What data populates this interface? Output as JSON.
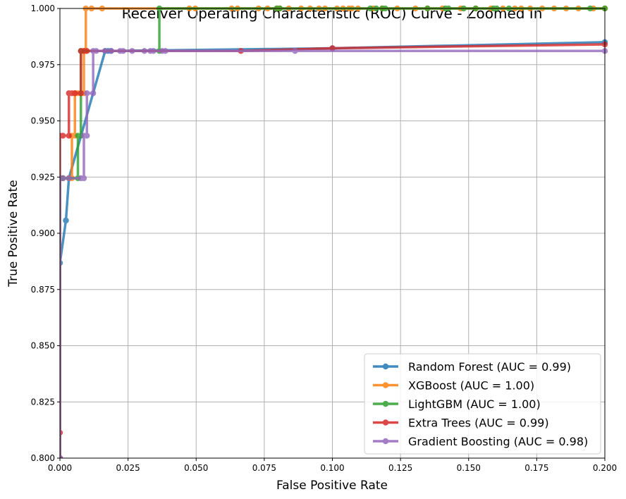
{
  "chart_data": {
    "type": "line",
    "title": "Receiver Operating Characteristic (ROC) Curve - Zoomed In",
    "xlabel": "False Positive Rate",
    "ylabel": "True Positive Rate",
    "xlim": [
      0.0,
      0.2
    ],
    "ylim": [
      0.8,
      1.0
    ],
    "xticks": [
      "0.000",
      "0.025",
      "0.050",
      "0.075",
      "0.100",
      "0.125",
      "0.150",
      "0.175",
      "0.200"
    ],
    "yticks": [
      "0.800",
      "0.825",
      "0.850",
      "0.875",
      "0.900",
      "0.925",
      "0.950",
      "0.975",
      "1.000"
    ],
    "grid": true,
    "legend_position": "lower-right",
    "series": [
      {
        "name": "Random Forest (AUC = 0.99)",
        "color": "#1f77b4",
        "x": [
          0.0,
          0.0,
          0.0022,
          0.0022,
          0.0033,
          0.0166,
          0.0177,
          0.0188,
          0.1,
          0.2
        ],
        "y": [
          0.8,
          0.8868,
          0.9057,
          0.9057,
          0.9245,
          0.9811,
          0.9811,
          0.9811,
          0.9823,
          0.985
        ]
      },
      {
        "name": "XGBoost (AUC = 1.00)",
        "color": "#ff7f0e",
        "x": [
          0.0,
          0.0,
          0.0011,
          0.0033,
          0.0044,
          0.0044,
          0.0055,
          0.0055,
          0.0066,
          0.0077,
          0.0088,
          0.0088,
          0.0095,
          0.0095,
          0.0116,
          0.0155,
          0.0475,
          0.0497,
          0.063,
          0.0652,
          0.0729,
          0.0762,
          0.0796,
          0.0807,
          0.084,
          0.0885,
          0.0918,
          0.0951,
          0.0973,
          0.1017,
          0.1039,
          0.1061,
          0.1072,
          0.1094,
          0.115,
          0.1183,
          0.1238,
          0.1305,
          0.1349,
          0.1404,
          0.1471,
          0.1526,
          0.1582,
          0.1626,
          0.167,
          0.1693,
          0.1726,
          0.177,
          0.1814,
          0.1858,
          0.1903,
          0.1958,
          0.2
        ],
        "y": [
          0.8,
          0.9245,
          0.9245,
          0.9245,
          0.9245,
          0.9434,
          0.9434,
          0.9623,
          0.9623,
          0.9623,
          0.9623,
          0.9811,
          0.9811,
          1.0,
          1.0,
          1.0,
          1.0,
          1.0,
          1.0,
          1.0,
          1.0,
          1.0,
          1.0,
          1.0,
          1.0,
          1.0,
          1.0,
          1.0,
          1.0,
          1.0,
          1.0,
          1.0,
          1.0,
          1.0,
          1.0,
          1.0,
          1.0,
          1.0,
          1.0,
          1.0,
          1.0,
          1.0,
          1.0,
          1.0,
          1.0,
          1.0,
          1.0,
          1.0,
          1.0,
          1.0,
          1.0,
          1.0,
          1.0
        ]
      },
      {
        "name": "LightGBM (AUC = 1.00)",
        "color": "#2ca02c",
        "x": [
          0.0,
          0.0,
          0.0011,
          0.0066,
          0.0066,
          0.0077,
          0.0077,
          0.0365,
          0.0365,
          0.0796,
          0.0807,
          0.1139,
          0.1161,
          0.1183,
          0.1194,
          0.1349,
          0.1415,
          0.1426,
          0.1482,
          0.1526,
          0.1592,
          0.1603,
          0.1648,
          0.1946,
          0.2
        ],
        "y": [
          0.8,
          0.9245,
          0.9245,
          0.9245,
          0.9434,
          0.9434,
          0.9811,
          0.9811,
          1.0,
          1.0,
          1.0,
          1.0,
          1.0,
          1.0,
          1.0,
          1.0,
          1.0,
          1.0,
          1.0,
          1.0,
          1.0,
          1.0,
          1.0,
          1.0,
          1.0
        ]
      },
      {
        "name": "Extra Trees (AUC = 0.99)",
        "color": "#d62728",
        "x": [
          0.0,
          0.0,
          0.0,
          0.0011,
          0.0033,
          0.0033,
          0.0044,
          0.0055,
          0.0077,
          0.0077,
          0.0088,
          0.0099,
          0.0664,
          0.1,
          0.2
        ],
        "y": [
          0.8,
          0.8113,
          0.9434,
          0.9434,
          0.9434,
          0.9623,
          0.9623,
          0.9623,
          0.9623,
          0.9811,
          0.9811,
          0.9811,
          0.9811,
          0.9823,
          0.984
        ]
      },
      {
        "name": "Gradient Boosting (AUC = 0.98)",
        "color": "#9467bd",
        "x": [
          0.0,
          0.0,
          0.0011,
          0.0033,
          0.0077,
          0.0088,
          0.0088,
          0.0099,
          0.0099,
          0.0122,
          0.0122,
          0.0133,
          0.0166,
          0.0188,
          0.0221,
          0.0232,
          0.0265,
          0.031,
          0.0332,
          0.0343,
          0.0376,
          0.0387,
          0.0863,
          0.2
        ],
        "y": [
          0.8,
          0.9245,
          0.9245,
          0.9245,
          0.9245,
          0.9245,
          0.9434,
          0.9434,
          0.9623,
          0.9623,
          0.9811,
          0.9811,
          0.9811,
          0.9811,
          0.9811,
          0.9811,
          0.9811,
          0.9811,
          0.9811,
          0.9811,
          0.9811,
          0.9811,
          0.9811,
          0.9811
        ]
      }
    ]
  }
}
